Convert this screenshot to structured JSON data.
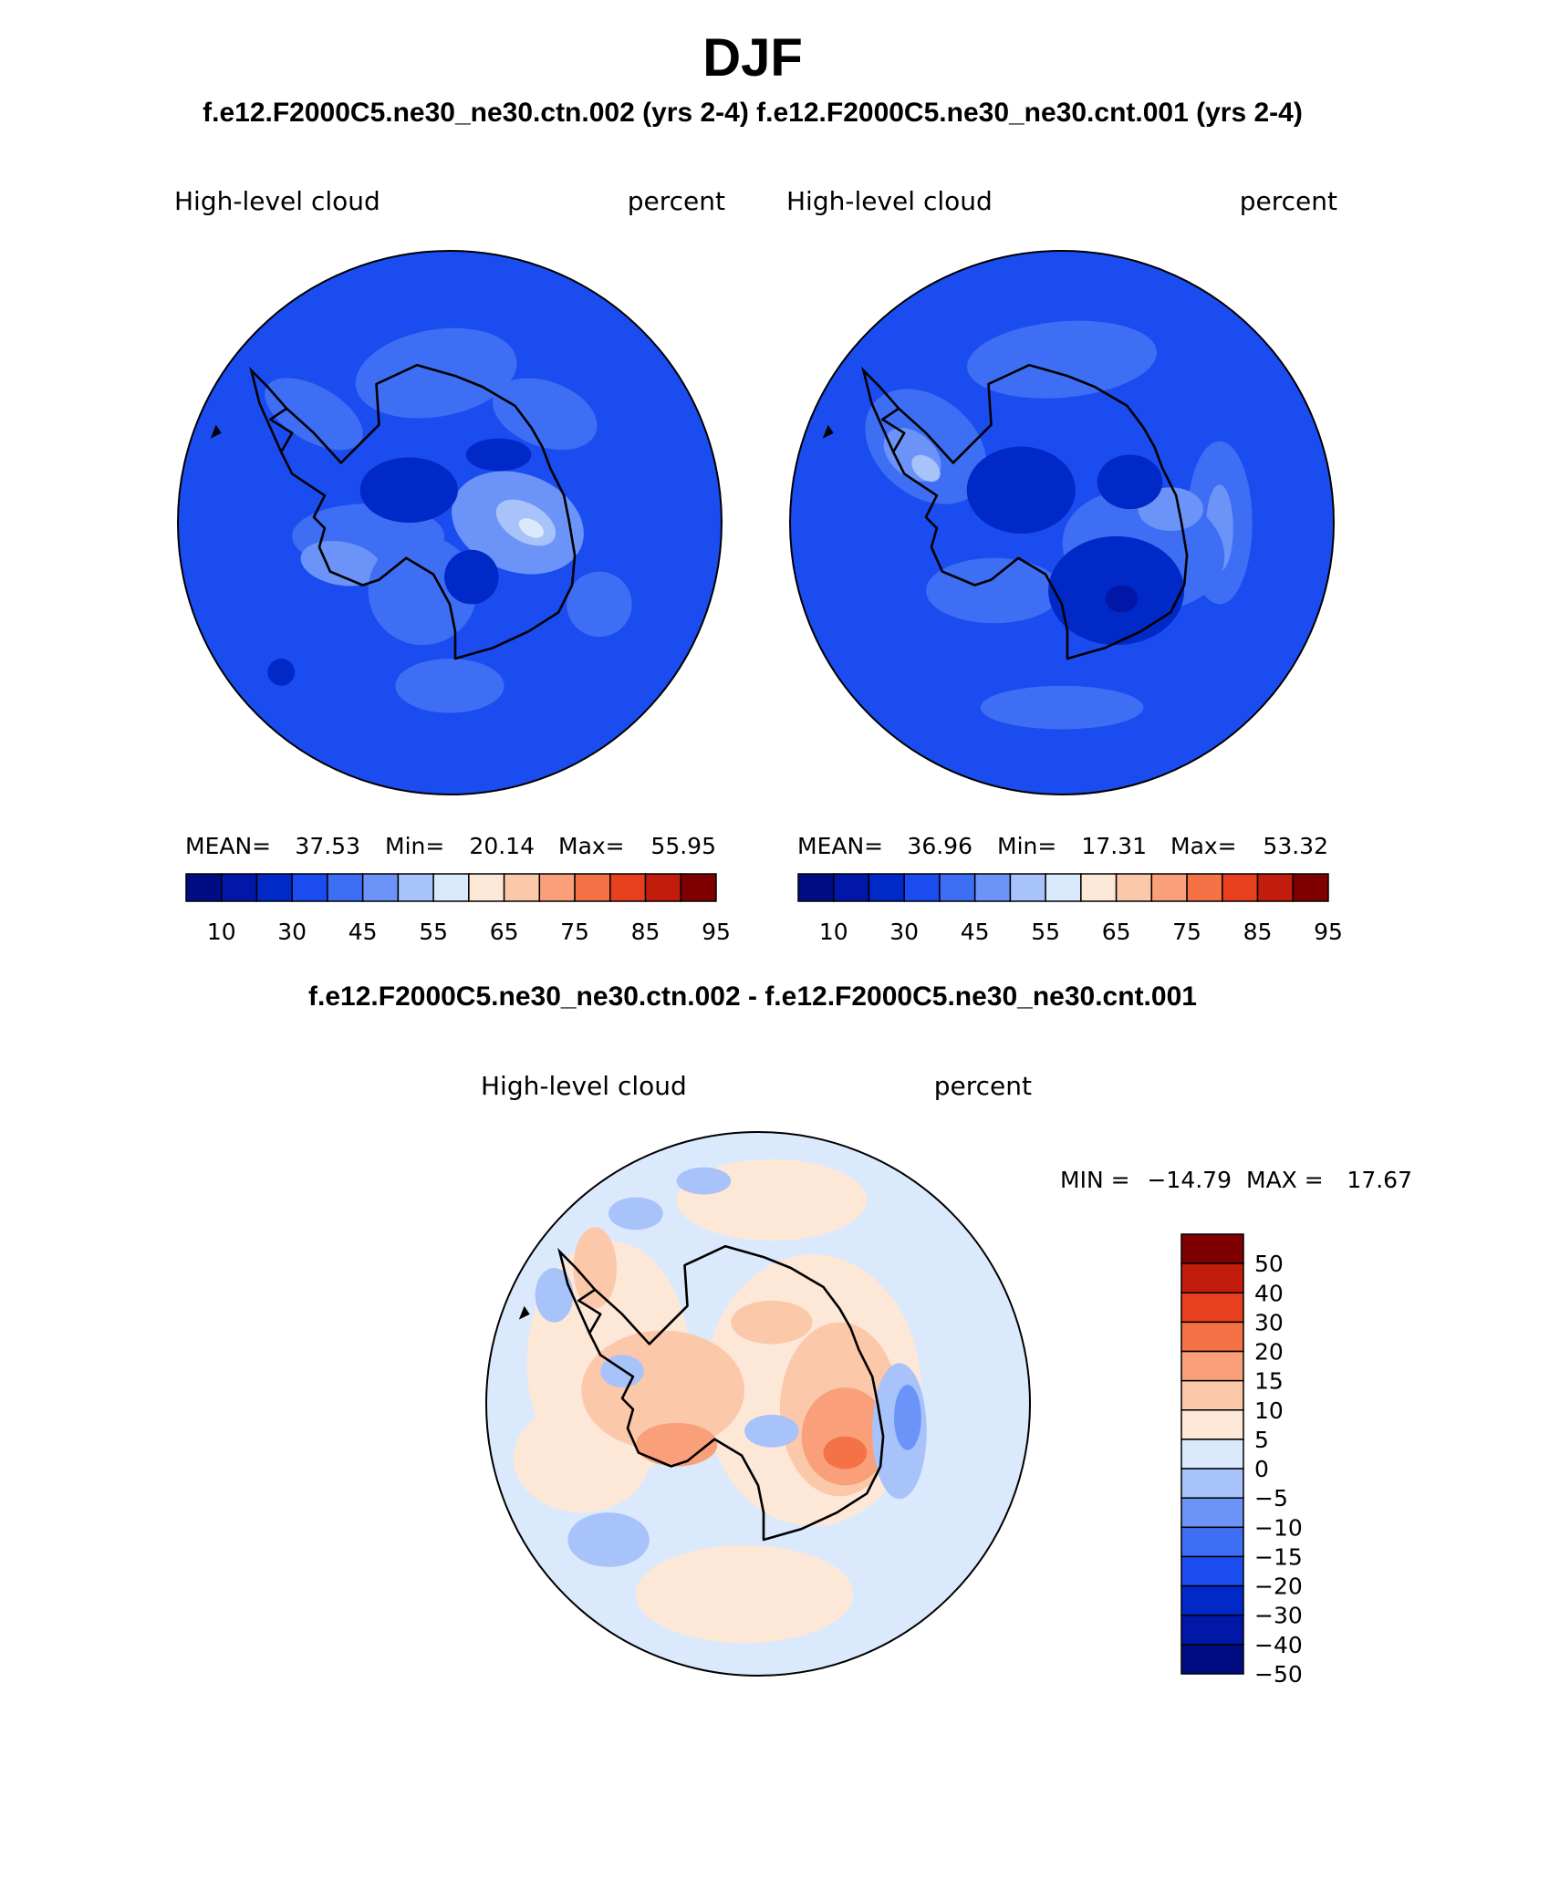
{
  "figure": {
    "season": "DJF",
    "subtitle": "f.e12.F2000C5.ne30_ne30.ctn.002 (yrs 2-4) f.e12.F2000C5.ne30_ne30.cnt.001 (yrs 2-4)",
    "diff_title": "f.e12.F2000C5.ne30_ne30.ctn.002 - f.e12.F2000C5.ne30_ne30.cnt.001"
  },
  "chart_data": [
    {
      "type": "heatmap",
      "projection": "south-polar-stereographic",
      "case": "f.e12.F2000C5.ne30_ne30.ctn.002 (yrs 2-4)",
      "variable": "High-level cloud",
      "units": "percent",
      "stats": {
        "mean_label": "MEAN=",
        "mean": "37.53",
        "min_label": "Min=",
        "min": "20.14",
        "max_label": "Max=",
        "max": "55.95"
      },
      "colorbar": {
        "orientation": "horizontal",
        "levels": [
          10,
          20,
          30,
          40,
          45,
          50,
          55,
          60,
          65,
          70,
          75,
          80,
          85,
          90,
          95
        ],
        "tick_labels": [
          "10",
          "30",
          "45",
          "55",
          "65",
          "75",
          "85",
          "95"
        ],
        "colors": [
          "#000d82",
          "#0017a8",
          "#0029c8",
          "#1a4cf0",
          "#3e6ef4",
          "#6b93f8",
          "#a8c2fa",
          "#dbe9fc",
          "#fde8d8",
          "#fcc8aa",
          "#f9a07a",
          "#f47246",
          "#e8401e",
          "#c21d0c",
          "#7e0000"
        ]
      },
      "field_colors": {
        "ocean": "#1a4cf0",
        "light": "#3e6ef4",
        "lighter": "#6b93f8",
        "lightest": "#a8c2fa",
        "pale": "#dbe9fc",
        "dark": "#0029c8"
      }
    },
    {
      "type": "heatmap",
      "projection": "south-polar-stereographic",
      "case": "f.e12.F2000C5.ne30_ne30.cnt.001 (yrs 2-4)",
      "variable": "High-level cloud",
      "units": "percent",
      "stats": {
        "mean_label": "MEAN=",
        "mean": "36.96",
        "min_label": "Min=",
        "min": "17.31",
        "max_label": "Max=",
        "max": "53.32"
      },
      "colorbar": {
        "orientation": "horizontal",
        "levels": [
          10,
          20,
          30,
          40,
          45,
          50,
          55,
          60,
          65,
          70,
          75,
          80,
          85,
          90,
          95
        ],
        "tick_labels": [
          "10",
          "30",
          "45",
          "55",
          "65",
          "75",
          "85",
          "95"
        ],
        "colors": [
          "#000d82",
          "#0017a8",
          "#0029c8",
          "#1a4cf0",
          "#3e6ef4",
          "#6b93f8",
          "#a8c2fa",
          "#dbe9fc",
          "#fde8d8",
          "#fcc8aa",
          "#f9a07a",
          "#f47246",
          "#e8401e",
          "#c21d0c",
          "#7e0000"
        ]
      },
      "field_colors": {
        "ocean": "#1a4cf0",
        "light": "#3e6ef4",
        "lighter": "#6b93f8",
        "lightest": "#a8c2fa",
        "pale": "#dbe9fc",
        "dark": "#0029c8"
      }
    },
    {
      "type": "heatmap",
      "projection": "south-polar-stereographic",
      "case": "f.e12.F2000C5.ne30_ne30.ctn.002 - f.e12.F2000C5.ne30_ne30.cnt.001",
      "variable": "High-level cloud",
      "units": "percent",
      "stats": {
        "min_label": "MIN =",
        "min": "−14.79",
        "max_label": "MAX =",
        "max": "17.67"
      },
      "colorbar": {
        "orientation": "vertical",
        "levels": [
          -50,
          -40,
          -30,
          -20,
          -15,
          -10,
          -5,
          0,
          5,
          10,
          15,
          20,
          30,
          40,
          50
        ],
        "tick_labels": [
          "50",
          "40",
          "30",
          "20",
          "15",
          "10",
          "5",
          "0",
          "−5",
          "−10",
          "−15",
          "−20",
          "−30",
          "−40",
          "−50"
        ],
        "colors_top_to_bottom": [
          "#7e0000",
          "#c21d0c",
          "#e8401e",
          "#f47246",
          "#f9a07a",
          "#fcc8aa",
          "#fde8d8",
          "#dbe9fc",
          "#a8c2fa",
          "#6b93f8",
          "#3e6ef4",
          "#1a4cf0",
          "#0029c8",
          "#0017a8",
          "#000d82"
        ]
      },
      "field_colors": {
        "base": "#dbe9fc",
        "pos": "#fde8d8",
        "pos2": "#fcc8aa",
        "pos3": "#f9a07a",
        "pos4": "#f47246",
        "neg": "#a8c2fa",
        "neg2": "#6b93f8"
      }
    }
  ]
}
